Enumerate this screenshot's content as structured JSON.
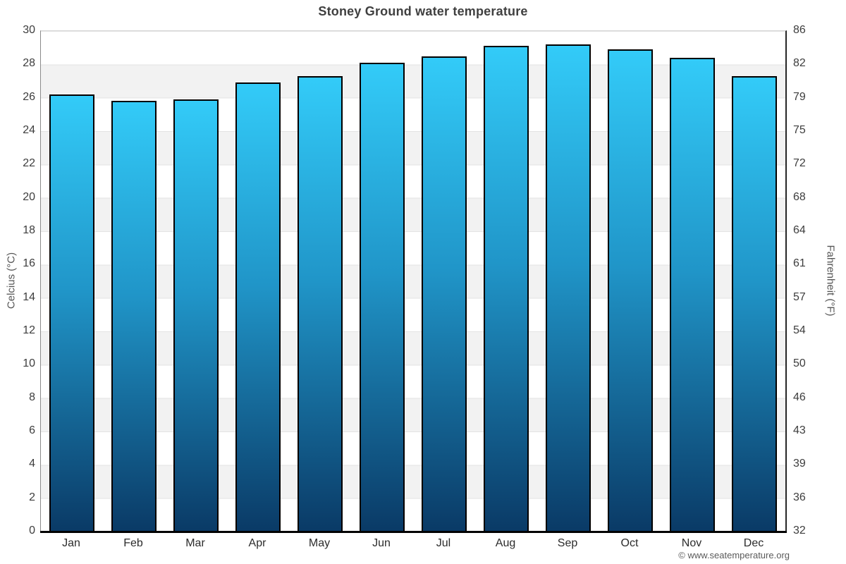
{
  "page": {
    "title": "Stoney Ground water temperature",
    "footer": "© www.seatemperature.org"
  },
  "chart_data": {
    "type": "bar",
    "title": "Stoney Ground water temperature",
    "categories": [
      "Jan",
      "Feb",
      "Mar",
      "Apr",
      "May",
      "Jun",
      "Jul",
      "Aug",
      "Sep",
      "Oct",
      "Nov",
      "Dec"
    ],
    "series": [
      {
        "name": "Water temperature",
        "unit": "°C",
        "values": [
          26.2,
          25.8,
          25.9,
          26.9,
          27.3,
          28.1,
          28.5,
          29.1,
          29.2,
          28.9,
          28.4,
          27.3
        ]
      }
    ],
    "ylim": [
      0,
      30
    ],
    "axes": {
      "left": {
        "label": "Celcius (°C)",
        "ticks": [
          "30",
          "28",
          "26",
          "24",
          "22",
          "20",
          "18",
          "16",
          "14",
          "12",
          "10",
          "8",
          "6",
          "4",
          "2",
          "0"
        ]
      },
      "right": {
        "label": "Fahrenheit (°F)",
        "ticks": [
          "86",
          "82",
          "79",
          "75",
          "72",
          "68",
          "64",
          "61",
          "57",
          "54",
          "50",
          "46",
          "43",
          "39",
          "36",
          "32"
        ]
      }
    },
    "legend": "none",
    "grid": {
      "style": "alternating horizontal bands every 2°C",
      "band_light": "#ffffff",
      "band_dark": "#f2f2f2",
      "gridline": "#e3e3e3"
    },
    "colors": {
      "bar_gradient_top": "#33cbf8",
      "bar_gradient_mid": "#2095c8",
      "bar_gradient_bottom": "#0a3a66",
      "bar_outline": "#000000",
      "baseline": "#000000",
      "title_text": "#404040",
      "tick_text": "#3d3d3d",
      "footer_text": "#5a5a5a"
    }
  }
}
